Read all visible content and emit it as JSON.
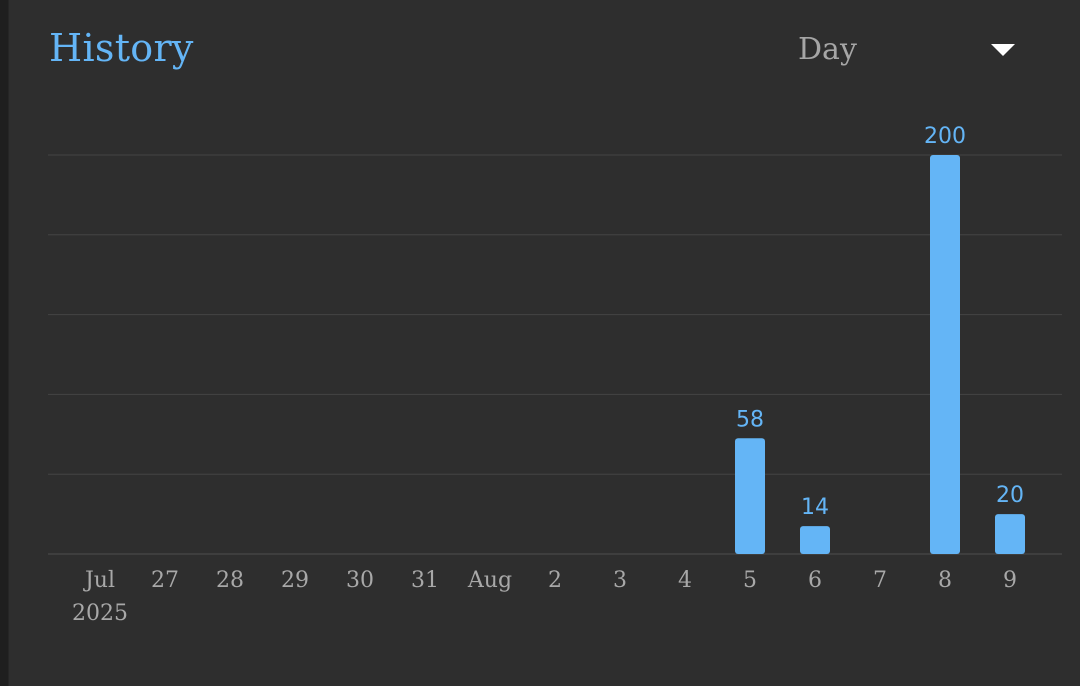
{
  "header": {
    "title": "History",
    "range_value": "Day",
    "chevron_icon": "chevron-down-icon"
  },
  "colors": {
    "bar": "#64b5f6",
    "grid": "#444444",
    "tick": "#a8a8a8",
    "background": "#2e2e2e"
  },
  "chart_data": {
    "type": "bar",
    "title": "History",
    "xlabel": "",
    "ylabel": "",
    "grid": true,
    "categories": [
      "Jul 26 2025",
      "Jul 27",
      "Jul 28",
      "Jul 29",
      "Jul 30",
      "Jul 31",
      "Aug 1",
      "Aug 2",
      "Aug 3",
      "Aug 4",
      "Aug 5",
      "Aug 6",
      "Aug 7",
      "Aug 8",
      "Aug 9"
    ],
    "tick_labels": [
      [
        "Jul",
        "2025"
      ],
      [
        "27"
      ],
      [
        "28"
      ],
      [
        "29"
      ],
      [
        "30"
      ],
      [
        "31"
      ],
      [
        "Aug"
      ],
      [
        "2"
      ],
      [
        "3"
      ],
      [
        "4"
      ],
      [
        "5"
      ],
      [
        "6"
      ],
      [
        "7"
      ],
      [
        "8"
      ],
      [
        "9"
      ]
    ],
    "values": [
      0,
      0,
      0,
      0,
      0,
      0,
      0,
      0,
      0,
      0,
      58,
      14,
      0,
      200,
      20
    ],
    "data_labels": [
      "",
      "",
      "",
      "",
      "",
      "",
      "",
      "",
      "",
      "",
      "58",
      "14",
      "",
      "200",
      "20"
    ],
    "ylim": [
      0,
      200
    ]
  }
}
